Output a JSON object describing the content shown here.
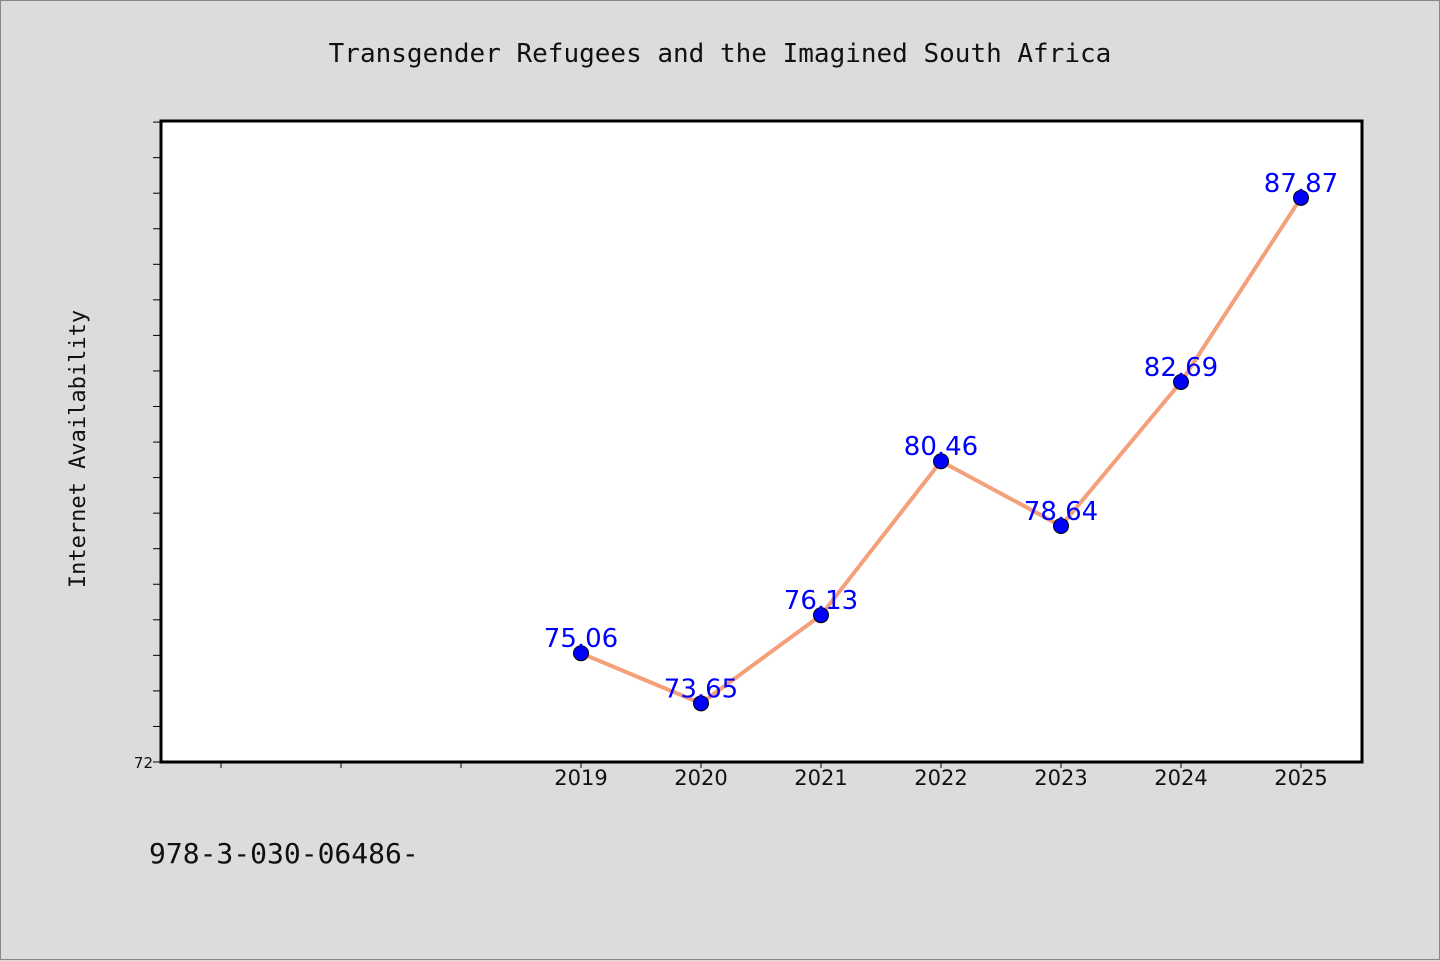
{
  "chart_data": {
    "type": "line",
    "title": "Transgender Refugees and the Imagined South Africa",
    "xlabel": "",
    "ylabel": "Internet Availability",
    "categories": [
      "2019",
      "2020",
      "2021",
      "2022",
      "2023",
      "2024",
      "2025"
    ],
    "x_category_slots": [
      "",
      "",
      "",
      "2019",
      "2020",
      "2021",
      "2022",
      "2023",
      "2024",
      "2025"
    ],
    "series": [
      {
        "values": [
          75.06,
          73.65,
          76.13,
          80.46,
          78.64,
          82.69,
          87.87
        ],
        "labels": [
          "75.06",
          "73.65",
          "76.13",
          "80.46",
          "78.64",
          "82.69",
          "87.87"
        ],
        "line_color": "#f4a07a",
        "marker_color": "#0000ff"
      }
    ],
    "ylim": [
      72,
      90
    ],
    "yticks_labeled": [
      "72"
    ],
    "ytick_step": 1,
    "grid": false,
    "legend": "none"
  },
  "footer": {
    "text": "978-3-030-06486-"
  },
  "colors": {
    "background": "#dcdcdc",
    "plot_background": "#ffffff",
    "label_color": "#0000ff"
  }
}
